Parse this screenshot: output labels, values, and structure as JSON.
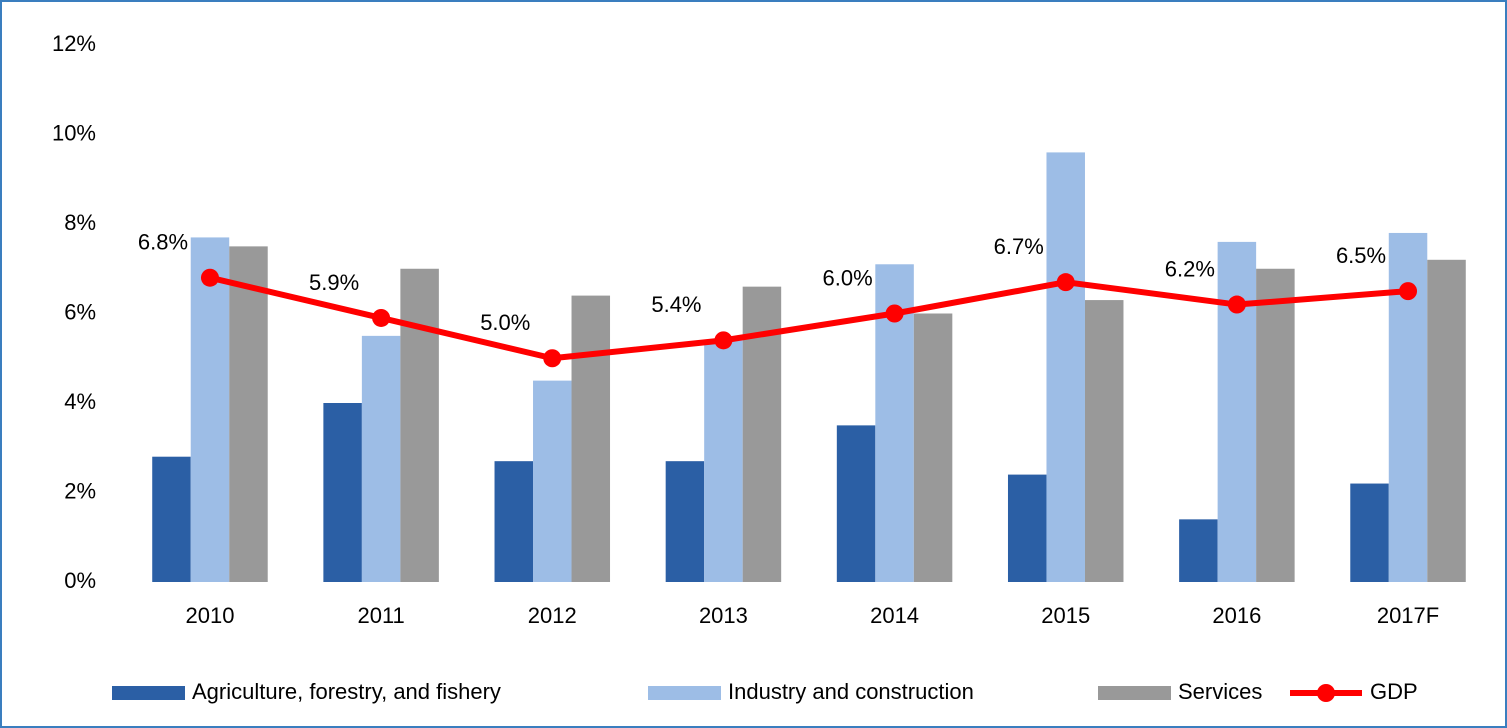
{
  "chart_data": {
    "type": "bar",
    "categories": [
      "2010",
      "2011",
      "2012",
      "2013",
      "2014",
      "2015",
      "2016",
      "2017F"
    ],
    "series": [
      {
        "name": "Agriculture, forestry, and fishery",
        "color": "#2b5fa5",
        "values": [
          2.8,
          4.0,
          2.7,
          2.7,
          3.5,
          2.4,
          1.4,
          2.2
        ]
      },
      {
        "name": "Industry and construction",
        "color": "#9dbde6",
        "values": [
          7.7,
          5.5,
          4.5,
          5.4,
          7.1,
          9.6,
          7.6,
          7.8
        ]
      },
      {
        "name": "Services",
        "color": "#999999",
        "values": [
          7.5,
          7.0,
          6.4,
          6.6,
          6.0,
          6.3,
          7.0,
          7.2
        ]
      },
      {
        "name": "GDP",
        "color": "#ff0000",
        "type": "line",
        "values": [
          6.8,
          5.9,
          5.0,
          5.4,
          6.0,
          6.7,
          6.2,
          6.5
        ],
        "value_labels": [
          "6.8%",
          "5.9%",
          "5.0%",
          "5.4%",
          "6.0%",
          "6.7%",
          "6.2%",
          "6.5%"
        ]
      }
    ],
    "ylim": [
      0,
      12
    ],
    "yticks": [
      {
        "value": 0,
        "label": "0%"
      },
      {
        "value": 2,
        "label": "2%"
      },
      {
        "value": 4,
        "label": "4%"
      },
      {
        "value": 6,
        "label": "6%"
      },
      {
        "value": 8,
        "label": "8%"
      },
      {
        "value": 10,
        "label": "10%"
      },
      {
        "value": 12,
        "label": "12%"
      }
    ],
    "grid": false,
    "legend": "bottom"
  }
}
